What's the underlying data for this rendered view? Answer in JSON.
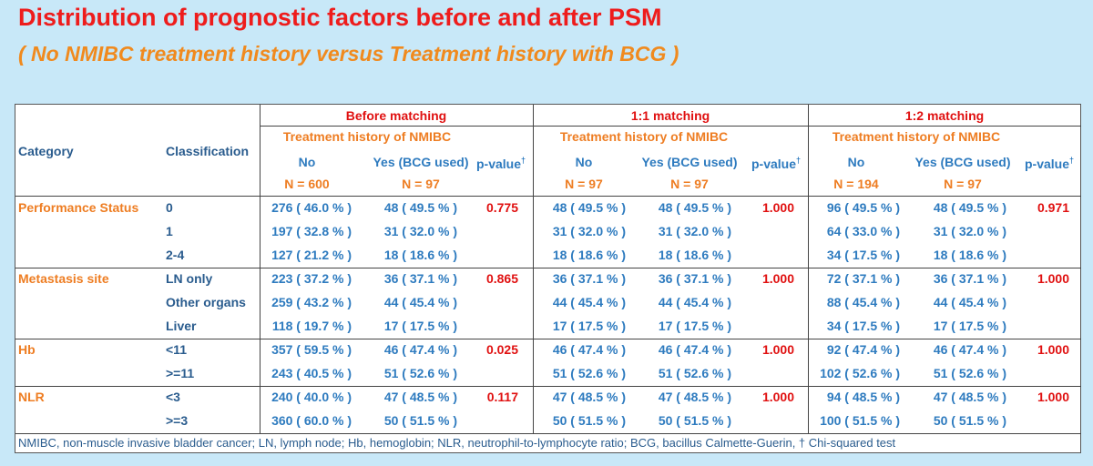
{
  "title": "Distribution of prognostic factors before and after PSM",
  "subtitle": "( No NMIBC treatment history versus Treatment history with BCG )",
  "table": {
    "header": {
      "category": "Category",
      "classification": "Classification",
      "groups": [
        {
          "name": "Before matching",
          "treatment": "Treatment history of NMIBC",
          "columns": [
            "No",
            "Yes (BCG used)"
          ],
          "p_value": "p-value",
          "dagger": "†",
          "n": [
            "N = 600",
            "N = 97"
          ]
        },
        {
          "name": "1:1 matching",
          "treatment": "Treatment history of NMIBC",
          "columns": [
            "No",
            "Yes (BCG used)"
          ],
          "p_value": "p-value",
          "dagger": "†",
          "n": [
            "N = 97",
            "N = 97"
          ]
        },
        {
          "name": "1:2 matching",
          "treatment": "Treatment history of NMIBC",
          "columns": [
            "No",
            "Yes (BCG used)"
          ],
          "p_value": "p-value",
          "dagger": "†",
          "n": [
            "N = 194",
            "N = 97"
          ]
        }
      ]
    },
    "sections": [
      {
        "category": "Performance Status",
        "p_values": [
          "0.775",
          "1.000",
          "0.971"
        ],
        "rows": [
          {
            "classification": "0",
            "cells": [
              "276 ( 46.0 % )",
              "48 ( 49.5 % )",
              "48 ( 49.5 % )",
              "48 ( 49.5 % )",
              "96 ( 49.5 % )",
              "48 ( 49.5 % )"
            ]
          },
          {
            "classification": "1",
            "cells": [
              "197 ( 32.8 % )",
              "31 ( 32.0 % )",
              "31 ( 32.0 % )",
              "31 ( 32.0 % )",
              "64 ( 33.0 % )",
              "31 ( 32.0 % )"
            ]
          },
          {
            "classification": "2-4",
            "cells": [
              "127 ( 21.2 % )",
              "18 ( 18.6 % )",
              "18 ( 18.6 % )",
              "18 ( 18.6 % )",
              "34 ( 17.5 % )",
              "18 ( 18.6 % )"
            ]
          }
        ]
      },
      {
        "category": "Metastasis site",
        "p_values": [
          "0.865",
          "1.000",
          "1.000"
        ],
        "rows": [
          {
            "classification": "LN only",
            "cells": [
              "223 ( 37.2 % )",
              "36 ( 37.1 % )",
              "36 ( 37.1 % )",
              "36 ( 37.1 % )",
              "72 ( 37.1 % )",
              "36 ( 37.1 % )"
            ]
          },
          {
            "classification": "Other organs",
            "cells": [
              "259 ( 43.2 % )",
              "44 ( 45.4 % )",
              "44 ( 45.4 % )",
              "44 ( 45.4 % )",
              "88 ( 45.4 % )",
              "44 ( 45.4 % )"
            ]
          },
          {
            "classification": "Liver",
            "cells": [
              "118 ( 19.7 % )",
              "17 ( 17.5 % )",
              "17 ( 17.5 % )",
              "17 ( 17.5 % )",
              "34 ( 17.5 % )",
              "17 ( 17.5 % )"
            ]
          }
        ]
      },
      {
        "category": "Hb",
        "p_values": [
          "0.025",
          "1.000",
          "1.000"
        ],
        "rows": [
          {
            "classification": "<11",
            "cells": [
              "357 ( 59.5 % )",
              "46 ( 47.4 % )",
              "46 ( 47.4 % )",
              "46 ( 47.4 % )",
              "92 ( 47.4 % )",
              "46 ( 47.4 % )"
            ]
          },
          {
            "classification": ">=11",
            "cells": [
              "243 ( 40.5 % )",
              "51 ( 52.6 % )",
              "51 ( 52.6 % )",
              "51 ( 52.6 % )",
              "102 ( 52.6 % )",
              "51 ( 52.6 % )"
            ]
          }
        ]
      },
      {
        "category": "NLR",
        "p_values": [
          "0.117",
          "1.000",
          "1.000"
        ],
        "rows": [
          {
            "classification": "<3",
            "cells": [
              "240 ( 40.0 % )",
              "47 ( 48.5 % )",
              "47 ( 48.5 % )",
              "47 ( 48.5 % )",
              "94 ( 48.5 % )",
              "47 ( 48.5 % )"
            ]
          },
          {
            "classification": ">=3",
            "cells": [
              "360 ( 60.0 % )",
              "50 ( 51.5 % )",
              "50 ( 51.5 % )",
              "50 ( 51.5 % )",
              "100 ( 51.5 % )",
              "50 ( 51.5 % )"
            ]
          }
        ]
      }
    ],
    "footnote": "NMIBC, non-muscle invasive bladder cancer; LN, lymph node; Hb, hemoglobin; NLR, neutrophil-to-lymphocyte ratio; BCG, bacillus Calmette-Guerin, † Chi-squared test"
  }
}
